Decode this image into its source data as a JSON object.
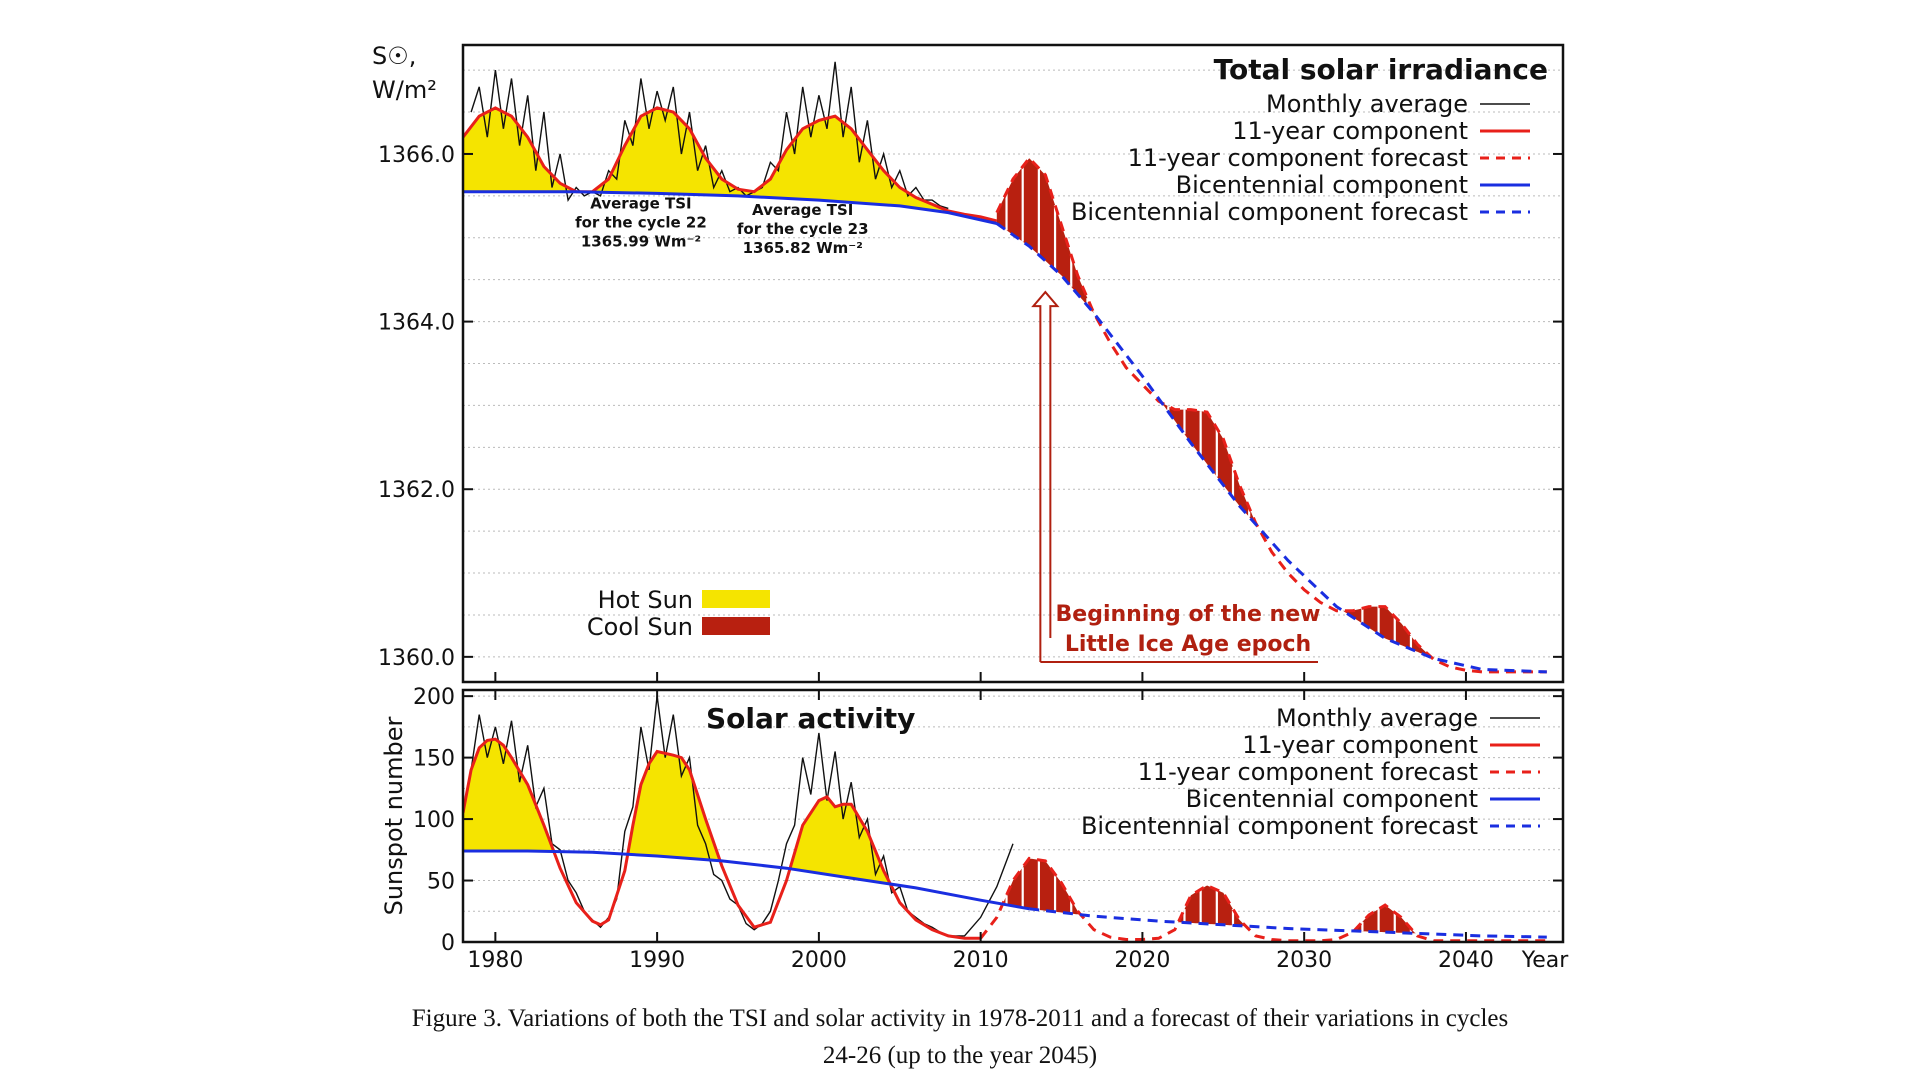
{
  "caption": {
    "line1": "Figure 3. Variations of both the TSI and solar activity in 1978-2011 and a forecast of their variations in cycles",
    "line2": "24-26 (up to the year 2045)"
  },
  "colors": {
    "hot_sun": "#f5e400",
    "cool_sun": "#b82010",
    "monthly": "#111111",
    "component_11yr": "#e8201a",
    "bicentennial": "#1a2ee0",
    "grid": "#bbbbbb"
  },
  "chart_data": [
    {
      "type": "line",
      "title": "Total solar irradiance",
      "ylabel_line1": "S☉,",
      "ylabel_line2": "W/m²",
      "xlim": [
        1978,
        2046
      ],
      "ylim": [
        1359.7,
        1367.3
      ],
      "yticks": [
        "1366.0",
        "1364.0",
        "1362.0",
        "1360.0"
      ],
      "ytick_values": [
        1366.0,
        1364.0,
        1362.0,
        1360.0
      ],
      "grid": true,
      "legend_position": "top-right",
      "legend": [
        {
          "label": "Monthly average",
          "style": "monthly"
        },
        {
          "label": "11-year component",
          "style": "solid-red"
        },
        {
          "label": "11-year component forecast",
          "style": "dashed-red"
        },
        {
          "label": "Bicentennial component",
          "style": "solid-blue"
        },
        {
          "label": "Bicentennial component forecast",
          "style": "dashed-blue"
        }
      ],
      "fill_legend": [
        {
          "label": "Hot Sun",
          "color": "hot"
        },
        {
          "label": "Cool Sun",
          "color": "cool"
        }
      ],
      "annotations": [
        {
          "lines": [
            "Average TSI",
            "for the cycle 22",
            "1365.99 Wm⁻²"
          ],
          "x": 1989.0,
          "y": 1365.35
        },
        {
          "lines": [
            "Average TSI",
            "for the cycle 23",
            "1365.82 Wm⁻²"
          ],
          "x": 1999.0,
          "y": 1365.27
        }
      ],
      "red_annotation": {
        "lines": [
          "Beginning of the new",
          "Little Ice Age epoch"
        ],
        "arrow_x": 2014,
        "arrow_y": 1364.4
      },
      "series": [
        {
          "name": "Bicentennial component",
          "x": [
            1978,
            1985,
            1990,
            1995,
            2000,
            2005,
            2008,
            2011
          ],
          "y": [
            1365.55,
            1365.55,
            1365.53,
            1365.5,
            1365.45,
            1365.38,
            1365.3,
            1365.17
          ]
        },
        {
          "name": "Bicentennial component forecast",
          "x": [
            2011,
            2013,
            2015,
            2017,
            2020,
            2023,
            2026,
            2029,
            2032,
            2035,
            2038,
            2041,
            2045
          ],
          "y": [
            1365.17,
            1364.9,
            1364.55,
            1364.1,
            1363.35,
            1362.55,
            1361.8,
            1361.15,
            1360.6,
            1360.22,
            1359.98,
            1359.85,
            1359.82
          ]
        },
        {
          "name": "11-year component",
          "x": [
            1978,
            1979,
            1980,
            1981,
            1982,
            1983,
            1984,
            1985,
            1986,
            1987,
            1988,
            1989,
            1990,
            1991,
            1992,
            1993,
            1994,
            1995,
            1996,
            1997,
            1998,
            1999,
            2000,
            2001,
            2002,
            2003,
            2004,
            2005,
            2006,
            2007,
            2008,
            2009,
            2010,
            2011
          ],
          "y": [
            1366.2,
            1366.45,
            1366.55,
            1366.45,
            1366.2,
            1365.85,
            1365.65,
            1365.55,
            1365.55,
            1365.7,
            1366.1,
            1366.45,
            1366.55,
            1366.5,
            1366.3,
            1365.95,
            1365.7,
            1365.58,
            1365.55,
            1365.7,
            1366.05,
            1366.3,
            1366.4,
            1366.45,
            1366.3,
            1366.05,
            1365.8,
            1365.6,
            1365.48,
            1365.4,
            1365.32,
            1365.28,
            1365.25,
            1365.2
          ]
        },
        {
          "name": "11-year component forecast",
          "x": [
            2011,
            2012,
            2013,
            2014,
            2015,
            2016,
            2017,
            2018,
            2019,
            2020,
            2021,
            2022,
            2023,
            2024,
            2025,
            2026,
            2027,
            2028,
            2029,
            2030,
            2031,
            2032,
            2033,
            2034,
            2035,
            2036,
            2037,
            2038,
            2039,
            2040,
            2041,
            2045
          ],
          "y": [
            1365.3,
            1365.7,
            1365.95,
            1365.75,
            1365.15,
            1364.55,
            1364.1,
            1363.75,
            1363.45,
            1363.25,
            1363.05,
            1362.95,
            1362.95,
            1362.92,
            1362.6,
            1362.05,
            1361.6,
            1361.25,
            1361.0,
            1360.8,
            1360.65,
            1360.55,
            1360.55,
            1360.6,
            1360.6,
            1360.4,
            1360.15,
            1359.97,
            1359.88,
            1359.84,
            1359.82,
            1359.82
          ]
        },
        {
          "name": "Monthly average",
          "x": [
            1978.5,
            1979.0,
            1979.5,
            1980.0,
            1980.5,
            1981.0,
            1981.5,
            1982.0,
            1982.5,
            1983.0,
            1983.5,
            1984.0,
            1984.5,
            1985.0,
            1985.5,
            1986.0,
            1986.5,
            1987.0,
            1987.5,
            1988.0,
            1988.5,
            1989.0,
            1989.5,
            1990.0,
            1990.5,
            1991.0,
            1991.5,
            1992.0,
            1992.5,
            1993.0,
            1993.5,
            1994.0,
            1994.5,
            1995.0,
            1995.5,
            1996.0,
            1996.5,
            1997.0,
            1997.5,
            1998.0,
            1998.5,
            1999.0,
            1999.5,
            2000.0,
            2000.5,
            2001.0,
            2001.5,
            2002.0,
            2002.5,
            2003.0,
            2003.5,
            2004.0,
            2004.5,
            2005.0,
            2005.5,
            2006.0,
            2006.5,
            2007.0,
            2007.5,
            2008.0
          ],
          "y": [
            1366.5,
            1366.8,
            1366.2,
            1367.0,
            1366.3,
            1366.9,
            1366.1,
            1366.7,
            1365.8,
            1366.5,
            1365.6,
            1366.0,
            1365.45,
            1365.6,
            1365.5,
            1365.55,
            1365.5,
            1365.8,
            1365.7,
            1366.4,
            1366.1,
            1366.9,
            1366.3,
            1366.75,
            1366.4,
            1366.8,
            1366.0,
            1366.5,
            1365.8,
            1366.1,
            1365.6,
            1365.8,
            1365.55,
            1365.6,
            1365.5,
            1365.55,
            1365.6,
            1365.9,
            1365.8,
            1366.5,
            1366.0,
            1366.8,
            1366.2,
            1366.7,
            1366.3,
            1367.1,
            1366.2,
            1366.8,
            1365.9,
            1366.4,
            1365.7,
            1366.0,
            1365.6,
            1365.8,
            1365.5,
            1365.6,
            1365.45,
            1365.45,
            1365.38,
            1365.35
          ]
        }
      ]
    },
    {
      "type": "line",
      "title": "Solar activity",
      "ylabel": "Sunspot number",
      "xlim": [
        1978,
        2046
      ],
      "ylim": [
        0,
        205
      ],
      "yticks": [
        "200",
        "150",
        "100",
        "50",
        "0"
      ],
      "ytick_values": [
        200,
        150,
        100,
        50,
        0
      ],
      "xticks": [
        "1980",
        "1990",
        "2000",
        "2010",
        "2020",
        "2030",
        "2040"
      ],
      "xtick_values": [
        1980,
        1990,
        2000,
        2010,
        2020,
        2030,
        2040
      ],
      "xlabel": "Year",
      "grid": true,
      "legend_position": "top-right",
      "legend": [
        {
          "label": "Monthly average",
          "style": "monthly"
        },
        {
          "label": "11-year component",
          "style": "solid-red"
        },
        {
          "label": "11-year component forecast",
          "style": "dashed-red"
        },
        {
          "label": "Bicentennial component",
          "style": "solid-blue"
        },
        {
          "label": "Bicentennial component forecast",
          "style": "dashed-blue"
        }
      ],
      "series": [
        {
          "name": "Bicentennial component",
          "x": [
            1978,
            1982,
            1986,
            1990,
            1994,
            1998,
            2002,
            2006,
            2010,
            2013
          ],
          "y": [
            74,
            74,
            73,
            70,
            66,
            60,
            52,
            44,
            34,
            27
          ]
        },
        {
          "name": "Bicentennial component forecast",
          "x": [
            2013,
            2017,
            2021,
            2025,
            2029,
            2033,
            2037,
            2041,
            2045
          ],
          "y": [
            27,
            21,
            17,
            14,
            11,
            9,
            7,
            5,
            4
          ]
        },
        {
          "name": "11-year component",
          "x": [
            1978,
            1978.5,
            1979,
            1979.5,
            1980,
            1980.5,
            1981,
            1982,
            1983,
            1984,
            1985,
            1986,
            1986.5,
            1987,
            1988,
            1988.5,
            1989,
            1989.5,
            1990,
            1991,
            1991.5,
            1992,
            1993,
            1994,
            1995,
            1996,
            1997,
            1998,
            1999,
            2000,
            2000.5,
            2001,
            2001.5,
            2002,
            2003,
            2004,
            2005,
            2006,
            2007,
            2008,
            2009,
            2010
          ],
          "y": [
            105,
            140,
            158,
            164,
            165,
            160,
            150,
            128,
            95,
            60,
            32,
            17,
            14,
            18,
            58,
            95,
            128,
            145,
            155,
            152,
            150,
            140,
            100,
            62,
            30,
            12,
            16,
            50,
            95,
            115,
            118,
            110,
            112,
            112,
            90,
            58,
            32,
            18,
            10,
            5,
            3,
            3
          ]
        },
        {
          "name": "11-year component forecast",
          "x": [
            2010,
            2011,
            2012,
            2013,
            2014,
            2015,
            2016,
            2017,
            2018,
            2019,
            2020,
            2021,
            2022,
            2023,
            2024,
            2025,
            2026,
            2027,
            2028,
            2029,
            2030,
            2031,
            2032,
            2033,
            2034,
            2035,
            2036,
            2037,
            2038,
            2039,
            2040,
            2045
          ],
          "y": [
            3,
            20,
            50,
            68,
            66,
            48,
            25,
            10,
            4,
            2,
            2,
            3,
            10,
            38,
            46,
            40,
            18,
            5,
            2,
            1,
            1,
            1,
            2,
            8,
            22,
            30,
            20,
            5,
            1,
            1,
            1,
            1
          ]
        },
        {
          "name": "Monthly average",
          "x": [
            1978.5,
            1979.0,
            1979.5,
            1980.0,
            1980.5,
            1981.0,
            1981.5,
            1982.0,
            1982.5,
            1983.0,
            1983.5,
            1984.0,
            1984.5,
            1985.0,
            1985.5,
            1986.0,
            1986.5,
            1987.0,
            1987.5,
            1988.0,
            1988.5,
            1989.0,
            1989.5,
            1990.0,
            1990.5,
            1991.0,
            1991.5,
            1992.0,
            1992.5,
            1993.0,
            1993.5,
            1994.0,
            1994.5,
            1995.0,
            1995.5,
            1996.0,
            1996.5,
            1997.0,
            1997.5,
            1998.0,
            1998.5,
            1999.0,
            1999.5,
            2000.0,
            2000.5,
            2001.0,
            2001.5,
            2002.0,
            2002.5,
            2003.0,
            2003.5,
            2004.0,
            2004.5,
            2005.0,
            2005.5,
            2006.0,
            2006.5,
            2007.0,
            2007.5,
            2008.0,
            2009.0,
            2010.0,
            2011.0,
            2012.0
          ],
          "y": [
            140,
            185,
            150,
            175,
            145,
            180,
            130,
            160,
            110,
            125,
            80,
            75,
            50,
            40,
            25,
            18,
            12,
            20,
            35,
            90,
            110,
            175,
            140,
            200,
            150,
            185,
            135,
            150,
            95,
            80,
            55,
            50,
            35,
            30,
            15,
            10,
            15,
            25,
            50,
            80,
            95,
            150,
            120,
            170,
            115,
            155,
            100,
            130,
            85,
            100,
            55,
            70,
            40,
            45,
            25,
            20,
            15,
            12,
            8,
            5,
            5,
            20,
            45,
            80
          ]
        }
      ]
    }
  ]
}
